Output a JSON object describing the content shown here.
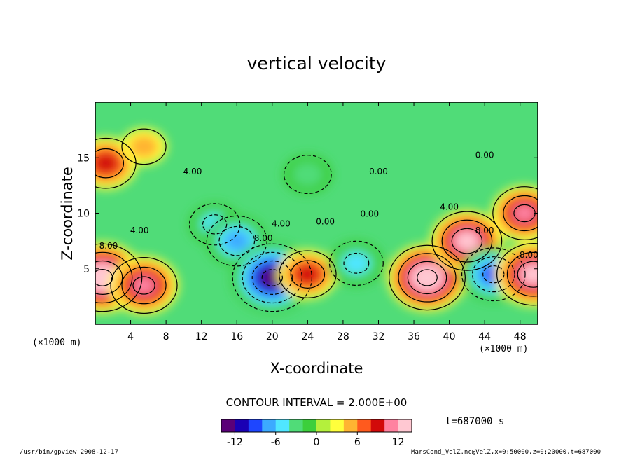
{
  "chart_data": {
    "type": "heatmap",
    "title": "vertical velocity",
    "xlabel": "X-coordinate",
    "ylabel": "Z-coordinate",
    "x_unit": "(×1000 m)",
    "y_unit": "(×1000 m)",
    "xlim": [
      0,
      50
    ],
    "ylim": [
      0,
      20
    ],
    "xticks": [
      4,
      8,
      12,
      16,
      20,
      24,
      28,
      32,
      36,
      40,
      44,
      48
    ],
    "yticks": [
      5,
      10,
      15
    ],
    "contour_interval": "CONTOUR INTERVAL = 2.000E+00",
    "contour_labels": [
      "4.00",
      "8.00",
      "4.00",
      "4.00",
      "8.00",
      "0.00",
      "4.00",
      "8.00",
      "8.00",
      "0.00",
      "0.00",
      "0.00"
    ],
    "colorbar": {
      "min": -14,
      "max": 14,
      "ticks": [
        -12,
        -6,
        0,
        6,
        12
      ],
      "colors": [
        "#5a0078",
        "#1a00b4",
        "#1e46ff",
        "#3caaff",
        "#50e6ff",
        "#50dc78",
        "#3ccf3c",
        "#b4f03c",
        "#ffff3c",
        "#ffb432",
        "#ff5a1e",
        "#d20a0a",
        "#ff82a0",
        "#ffc8d2"
      ]
    },
    "time_label": "t=687000 s",
    "features": [
      {
        "kind": "updraft",
        "x": 0.8,
        "z": 4.2,
        "value": 14
      },
      {
        "kind": "updraft",
        "x": 5.5,
        "z": 3.5,
        "value": 10
      },
      {
        "kind": "updraft",
        "x": 1.2,
        "z": 14.5,
        "value": 8
      },
      {
        "kind": "downdraft",
        "x": 13.5,
        "z": 9.0,
        "value": -5
      },
      {
        "kind": "downdraft",
        "x": 16.0,
        "z": 7.5,
        "value": -8
      },
      {
        "kind": "downdraft",
        "x": 20.0,
        "z": 4.2,
        "value": -14
      },
      {
        "kind": "updraft",
        "x": 24.0,
        "z": 4.5,
        "value": 7
      },
      {
        "kind": "downdraft",
        "x": 29.5,
        "z": 5.5,
        "value": -6
      },
      {
        "kind": "updraft",
        "x": 37.5,
        "z": 4.2,
        "value": 13
      },
      {
        "kind": "updraft",
        "x": 42.0,
        "z": 7.5,
        "value": 11
      },
      {
        "kind": "downdraft",
        "x": 45.0,
        "z": 4.5,
        "value": -9
      },
      {
        "kind": "updraft",
        "x": 49.5,
        "z": 4.5,
        "value": 12
      },
      {
        "kind": "updraft",
        "x": 48.5,
        "z": 10.0,
        "value": 9
      },
      {
        "kind": "downdraft",
        "x": 24.0,
        "z": 13.5,
        "value": -4
      },
      {
        "kind": "updraft",
        "x": 5.5,
        "z": 16.0,
        "value": 3
      }
    ]
  },
  "footer": {
    "left": "/usr/bin/gpview  2008-12-17",
    "right": "MarsCond_VelZ.nc@VelZ,x=0:50000,z=0:20000,t=687000"
  }
}
